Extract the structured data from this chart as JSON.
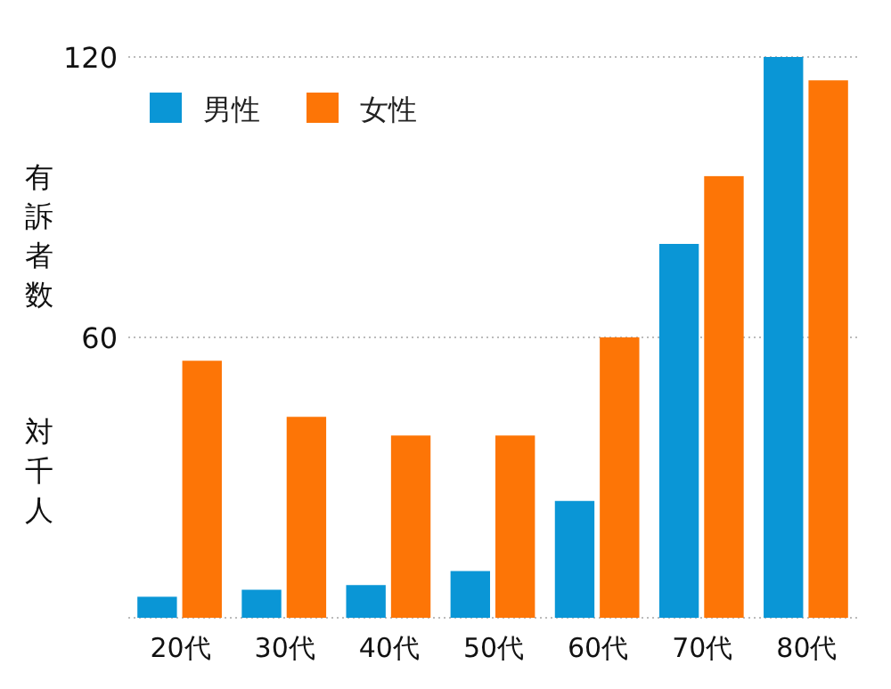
{
  "chart_data": {
    "type": "bar",
    "ylabel": "有訴者数",
    "annotations": [
      "対千人"
    ],
    "categories": [
      "20代",
      "30代",
      "40代",
      "50代",
      "60代",
      "70代",
      "80代"
    ],
    "series": [
      {
        "name": "男性",
        "color": "#0a96d6",
        "values": [
          4.5,
          6,
          7,
          10,
          25,
          80,
          120
        ]
      },
      {
        "name": "女性",
        "color": "#fd7506",
        "values": [
          55,
          43,
          39,
          39,
          60,
          94.5,
          115
        ]
      }
    ],
    "ylim": [
      0,
      120
    ],
    "yticks": [
      {
        "value": 0,
        "label": null
      },
      60,
      120
    ],
    "grid": "y",
    "legend": "top left"
  }
}
